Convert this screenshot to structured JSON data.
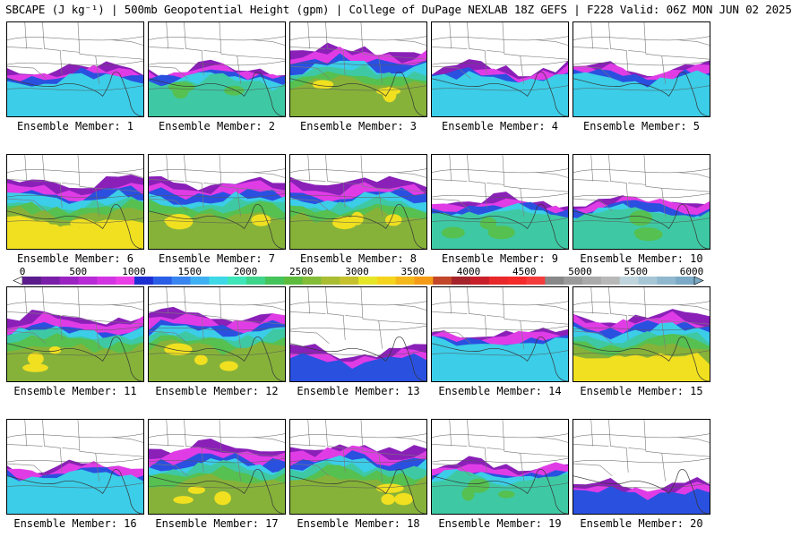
{
  "header": {
    "title": "SBCAPE (J kg⁻¹) | 500mb Geopotential Height (gpm) | College of DuPage NEXLAB 18Z GEFS | F228 Valid: 06Z MON JUN 02 2025"
  },
  "colorbar": {
    "ticks": [
      "0",
      "500",
      "1000",
      "1500",
      "2000",
      "2500",
      "3000",
      "3500",
      "4000",
      "4500",
      "5000",
      "5500",
      "6000"
    ],
    "colors": [
      "#5a1b8c",
      "#7a1fa8",
      "#9a23c2",
      "#b82ad6",
      "#d334e2",
      "#ea3ee6",
      "#1e2fd2",
      "#2a5ee6",
      "#3a86f0",
      "#3fb0f2",
      "#3ed8e6",
      "#3ee6b8",
      "#3ed48a",
      "#45c45c",
      "#5dbb3d",
      "#84bd37",
      "#a8bd32",
      "#c6c22d",
      "#e6e628",
      "#f5d41e",
      "#f5b81a",
      "#f59a16",
      "#c2462a",
      "#a5232a",
      "#c8202a",
      "#e8282a",
      "#f52a2a",
      "#f53c3c",
      "#888888",
      "#9a9a9a",
      "#aaaaaa",
      "#b8b8b8",
      "#bfd4dc",
      "#a6c6d6",
      "#8fb8cf",
      "#7aaac6"
    ]
  },
  "palette": {
    "purple": "#8a20b8",
    "magenta": "#e03ce6",
    "blue": "#2a50e0",
    "cyan": "#3ccde8",
    "teal": "#3ec9a4",
    "green": "#56c050",
    "olive": "#86b23a",
    "yellow": "#f0e020",
    "gray": "#7a7a7a"
  },
  "members": [
    {
      "label": "Ensemble Member: 1",
      "cape_level": 2
    },
    {
      "label": "Ensemble Member: 2",
      "cape_level": 3
    },
    {
      "label": "Ensemble Member: 3",
      "cape_level": 4
    },
    {
      "label": "Ensemble Member: 4",
      "cape_level": 2
    },
    {
      "label": "Ensemble Member: 5",
      "cape_level": 2
    },
    {
      "label": "Ensemble Member: 6",
      "cape_level": 5
    },
    {
      "label": "Ensemble Member: 7",
      "cape_level": 4
    },
    {
      "label": "Ensemble Member: 8",
      "cape_level": 4
    },
    {
      "label": "Ensemble Member: 9",
      "cape_level": 3
    },
    {
      "label": "Ensemble Member: 10",
      "cape_level": 3
    },
    {
      "label": "Ensemble Member: 11",
      "cape_level": 4
    },
    {
      "label": "Ensemble Member: 12",
      "cape_level": 4
    },
    {
      "label": "Ensemble Member: 13",
      "cape_level": 1
    },
    {
      "label": "Ensemble Member: 14",
      "cape_level": 2
    },
    {
      "label": "Ensemble Member: 15",
      "cape_level": 5
    },
    {
      "label": "Ensemble Member: 16",
      "cape_level": 2
    },
    {
      "label": "Ensemble Member: 17",
      "cape_level": 4
    },
    {
      "label": "Ensemble Member: 18",
      "cape_level": 4
    },
    {
      "label": "Ensemble Member: 19",
      "cape_level": 3
    },
    {
      "label": "Ensemble Member: 20",
      "cape_level": 1
    }
  ]
}
